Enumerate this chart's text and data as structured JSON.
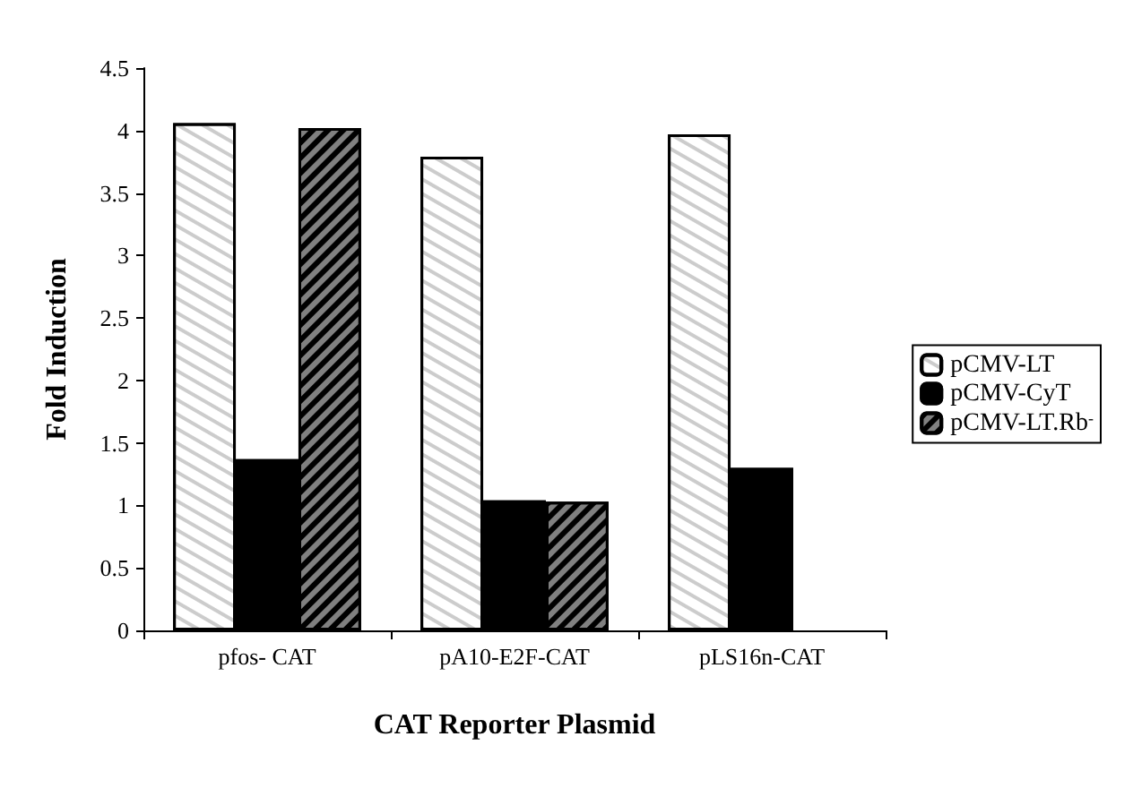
{
  "chart_data": {
    "type": "bar",
    "xlabel": "CAT Reporter Plasmid",
    "ylabel": "Fold Induction",
    "categories": [
      "pfos- CAT",
      "pA10-E2F-CAT",
      "pLS16n-CAT"
    ],
    "series": [
      {
        "name": "pCMV-LT",
        "color": "#ffffff",
        "values": [
          4.06,
          3.79,
          3.97
        ]
      },
      {
        "name": "pCMV-CyT",
        "color": "#000000",
        "values": [
          1.37,
          1.04,
          1.3
        ]
      },
      {
        "name": "pCMV-LT.Rb$^{-}$",
        "color": "#808080",
        "values": [
          4.02,
          1.03,
          null
        ]
      }
    ],
    "ylim": [
      0,
      4.5
    ],
    "yticks": [
      0,
      0.5,
      1,
      1.5,
      2,
      2.5,
      3,
      3.5,
      4,
      4.5
    ],
    "grid": false,
    "legend": "right"
  }
}
